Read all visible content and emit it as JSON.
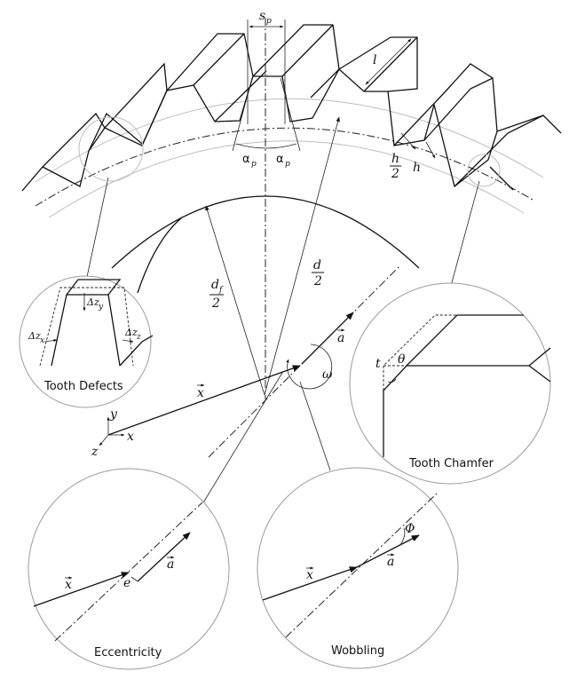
{
  "insets": {
    "tooth_defects": "Tooth Defects",
    "tooth_chamfer": "Tooth Chamfer",
    "eccentricity": "Eccentricity",
    "wobbling": "Wobbling"
  },
  "symbols": {
    "sp": "s",
    "sp_sub": "p",
    "alpha_left": "α",
    "alpha_right": "α",
    "alpha_sub": "p",
    "l": "l",
    "h": "h",
    "h_half_num": "h",
    "h_half_den": "2",
    "d_num": "d",
    "d_den": "2",
    "df_num": "d",
    "df_sub": "f",
    "df_den": "2",
    "a": "a",
    "omega": "ω",
    "x": "x",
    "axis_x": "x",
    "axis_y": "y",
    "axis_z": "z",
    "dz_y": "Δz",
    "dz_y_sub": "y",
    "dz_x": "Δz",
    "dz_x_sub": "x",
    "dz_z": "Δz",
    "dz_z_sub": "z",
    "t": "t",
    "theta": "θ",
    "e": "e",
    "phi": "Φ",
    "x_ecc": "x",
    "a_ecc": "a",
    "x_wob": "x",
    "a_wob": "a"
  }
}
